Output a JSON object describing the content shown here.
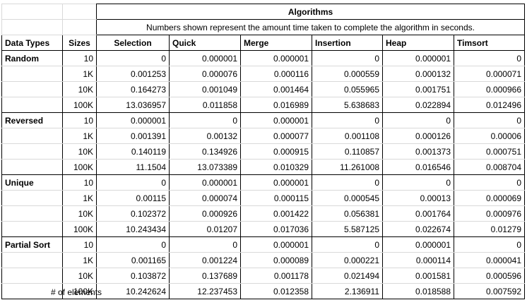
{
  "header": {
    "title": "Algorithms",
    "subtitle": "Numbers shown represent the amount time taken to complete the algorithm in seconds.",
    "col_data_types": "Data Types",
    "col_sizes": "Sizes",
    "algorithms": [
      "Selection",
      "Quick",
      "Merge",
      "Insertion",
      "Heap",
      "Timsort"
    ]
  },
  "footer": {
    "note": "# of elements"
  },
  "groups": [
    {
      "name": "Random",
      "rows": [
        {
          "size": "10",
          "values": [
            "0",
            "0.000001",
            "0.000001",
            "0",
            "0.000001",
            "0"
          ]
        },
        {
          "size": "1K",
          "values": [
            "0.001253",
            "0.000076",
            "0.000116",
            "0.000559",
            "0.000132",
            "0.000071"
          ]
        },
        {
          "size": "10K",
          "values": [
            "0.164273",
            "0.001049",
            "0.001464",
            "0.055965",
            "0.001751",
            "0.000966"
          ]
        },
        {
          "size": "100K",
          "values": [
            "13.036957",
            "0.011858",
            "0.016989",
            "5.638683",
            "0.022894",
            "0.012496"
          ]
        }
      ]
    },
    {
      "name": "Reversed",
      "rows": [
        {
          "size": "10",
          "values": [
            "0.000001",
            "0",
            "0.000001",
            "0",
            "0",
            "0"
          ]
        },
        {
          "size": "1K",
          "values": [
            "0.001391",
            "0.00132",
            "0.000077",
            "0.001108",
            "0.000126",
            "0.00006"
          ]
        },
        {
          "size": "10K",
          "values": [
            "0.140119",
            "0.134926",
            "0.000915",
            "0.110857",
            "0.001373",
            "0.000751"
          ]
        },
        {
          "size": "100K",
          "values": [
            "11.1504",
            "13.073389",
            "0.010329",
            "11.261008",
            "0.016546",
            "0.008704"
          ]
        }
      ]
    },
    {
      "name": "Unique",
      "rows": [
        {
          "size": "10",
          "values": [
            "0",
            "0.000001",
            "0.000001",
            "0",
            "0",
            "0"
          ]
        },
        {
          "size": "1K",
          "values": [
            "0.00115",
            "0.000074",
            "0.000115",
            "0.000545",
            "0.00013",
            "0.000069"
          ]
        },
        {
          "size": "10K",
          "values": [
            "0.102372",
            "0.000926",
            "0.001422",
            "0.056381",
            "0.001764",
            "0.000976"
          ]
        },
        {
          "size": "100K",
          "values": [
            "10.243434",
            "0.01207",
            "0.017036",
            "5.587125",
            "0.022674",
            "0.01279"
          ]
        }
      ]
    },
    {
      "name": "Partial Sort",
      "rows": [
        {
          "size": "10",
          "values": [
            "0",
            "0",
            "0.000001",
            "0",
            "0.000001",
            "0"
          ]
        },
        {
          "size": "1K",
          "values": [
            "0.001165",
            "0.001224",
            "0.000089",
            "0.000221",
            "0.000114",
            "0.000041"
          ]
        },
        {
          "size": "10K",
          "values": [
            "0.103872",
            "0.137689",
            "0.001178",
            "0.021494",
            "0.001581",
            "0.000596"
          ]
        },
        {
          "size": "100K",
          "values": [
            "10.242624",
            "12.237453",
            "0.012358",
            "2.136911",
            "0.018588",
            "0.007592"
          ]
        }
      ]
    }
  ]
}
